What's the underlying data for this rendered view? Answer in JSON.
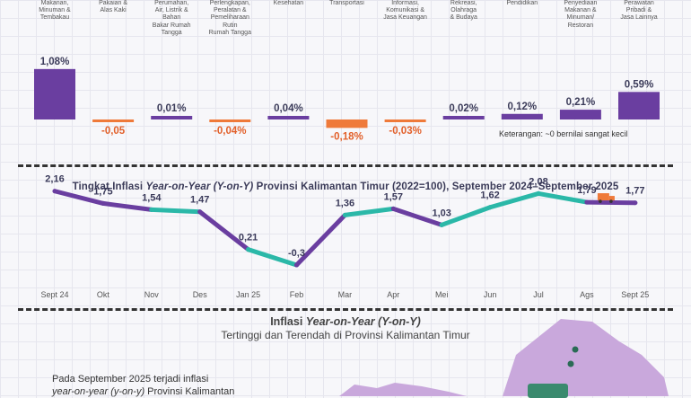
{
  "bar_section": {
    "note": "Keterangan: ~0 bernilai sangat kecil",
    "colors": {
      "positive": "#6a3ea0",
      "negative": "#ef7a3a",
      "label_positive": "#3c3c5a",
      "label_negative": "#e2602a"
    }
  },
  "line_section": {
    "title_prefix": "Tingkat Inflasi ",
    "title_italic": "Year-on-Year (Y-on-Y)",
    "title_suffix": " Provinsi Kalimantan Timur (2022=100), September 2024–September 2025",
    "colors": {
      "teal": "#2bb8a8",
      "purple": "#6a3ea0"
    }
  },
  "bottom_section": {
    "title_line1_prefix": "Inflasi ",
    "title_line1_italic": "Year-on-Year (Y-on-Y)",
    "title_line2": "Tertinggi dan Terendah di Provinsi Kalimantan Timur",
    "paragraph_line1": "Pada September 2025 terjadi inflasi",
    "paragraph_line2_italic": "year-on-year (y-on-y)",
    "paragraph_line2_suffix": " Provinsi Kalimantan",
    "map_color": "#c9a8dc"
  },
  "chart_data": [
    {
      "type": "bar",
      "title": "",
      "categories": [
        "Makanan, Minuman & Tembakau",
        "Pakaian & Alas Kaki",
        "Perumahan, Air, Listrik & Bahan Bakar Rumah Tangga",
        "Perlengkapan, Peralatan & Pemeliharaan Rutin Rumah Tangga",
        "Kesehatan",
        "Transportasi",
        "Informasi, Komunikasi & Jasa Keuangan",
        "Rekreasi, Olahraga & Budaya",
        "Pendidikan",
        "Penyediaan Makanan & Minuman/ Restoran",
        "Perawatan Pribadi & Jasa Lainnya"
      ],
      "category_label_lines": [
        [
          "Makanan,",
          "Minuman &",
          "Tembakau"
        ],
        [
          "Pakaian &",
          "Alas Kaki"
        ],
        [
          "Perumahan,",
          "Air, Listrik &",
          "Bahan",
          "Bakar Rumah",
          "Tangga"
        ],
        [
          "Perlengkapan,",
          "Peralatan &",
          "Pemeliharaan",
          "Rutin",
          "Rumah Tangga"
        ],
        [
          "Kesehatan"
        ],
        [
          "Transportasi"
        ],
        [
          "Informasi,",
          "Komunikasi &",
          "Jasa Keuangan"
        ],
        [
          "Rekreasi,",
          "Olahraga",
          "& Budaya"
        ],
        [
          "Pendidikan"
        ],
        [
          "Penyediaan",
          "Makanan &",
          "Minuman/",
          "Restoran"
        ],
        [
          "Perawatan",
          "Pribadi &",
          "Jasa Lainnya"
        ]
      ],
      "values": [
        1.08,
        -0.05,
        0.01,
        -0.04,
        0.04,
        -0.18,
        -0.03,
        0.02,
        0.12,
        0.21,
        0.59
      ],
      "labels": [
        "1,08%",
        "-0,05",
        "0,01%",
        "-0,04%",
        "0,04%",
        "-0,18%",
        "-0,03%",
        "0,02%",
        "0,12%",
        "0,21%",
        "0,59%"
      ],
      "ylim": [
        -0.2,
        1.1
      ]
    },
    {
      "type": "line",
      "title": "Tingkat Inflasi Year-on-Year (Y-on-Y) Provinsi Kalimantan Timur (2022=100), September 2024–September 2025",
      "x": [
        "Sept 24",
        "Okt",
        "Nov",
        "Des",
        "Jan 25",
        "Feb",
        "Mar",
        "Apr",
        "Mei",
        "Jun",
        "Jul",
        "Ags",
        "Sept 25"
      ],
      "values": [
        2.16,
        1.75,
        1.54,
        1.47,
        0.21,
        -0.31,
        1.36,
        1.57,
        1.03,
        1.62,
        2.08,
        1.79,
        1.77
      ],
      "labels": [
        "2,16",
        "1,75",
        "1,54",
        "1,47",
        "0,21",
        "-0,3",
        "1,36",
        "1,57",
        "1,03",
        "1,62",
        "2,08",
        "1,79",
        "1,77"
      ],
      "segment_colors": [
        "purple",
        "purple",
        "teal",
        "purple",
        "teal",
        "purple",
        "teal",
        "purple",
        "teal",
        "teal",
        "teal",
        "purple"
      ],
      "ylim": [
        -0.5,
        2.5
      ]
    }
  ]
}
